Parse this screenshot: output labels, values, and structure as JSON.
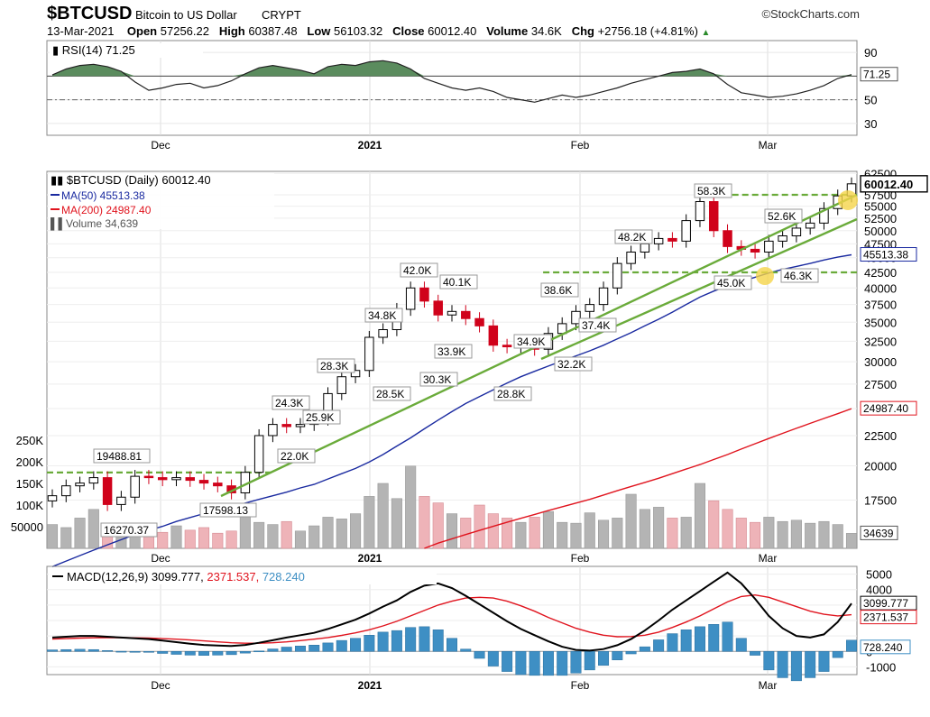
{
  "header": {
    "symbol": "$BTCUSD",
    "name": "Bitcoin to US Dollar",
    "class": "CRYPT",
    "logo": "©StockCharts.com",
    "date": "13-Mar-2021",
    "open_label": "Open",
    "open": "57256.22",
    "high_label": "High",
    "high": "60387.48",
    "low_label": "Low",
    "low": "56103.32",
    "close_label": "Close",
    "close": "60012.40",
    "volume_label": "Volume",
    "volume": "34.6K",
    "chg_label": "Chg",
    "chg": "+2756.18 (+4.81%)"
  },
  "colors": {
    "up_candle": "#000000",
    "down_candle": "#d0021b",
    "ma50": "#1a2aa0",
    "ma200": "#e0141e",
    "trend": "#6aab3a",
    "rsi_fill": "#5b8c5e",
    "volume_up": "#b4b4b4",
    "volume_down": "#eeb3b8",
    "macd_line": "#000000",
    "signal_line": "#e0141e",
    "histogram": "#3e8fc4"
  },
  "chart_data": [
    {
      "type": "line",
      "panel": "rsi",
      "legend": "RSI(14) 71.25",
      "current_label": "71.25",
      "y_ticks": [
        "90",
        "70",
        "50",
        "30"
      ],
      "ylim": [
        20,
        100
      ],
      "overbought": 70,
      "midline": 50,
      "x": [
        "Nov 18",
        "Nov 20",
        "Nov 22",
        "Nov 24",
        "Nov 26",
        "Nov 28",
        "Nov 30",
        "Dec 2",
        "Dec 4",
        "Dec 6",
        "Dec 8",
        "Dec 10",
        "Dec 12",
        "Dec 14",
        "Dec 16",
        "Dec 18",
        "Dec 20",
        "Dec 22",
        "Dec 24",
        "Dec 26",
        "Dec 28",
        "Dec 30",
        "Jan 1",
        "Jan 3",
        "Jan 5",
        "Jan 7",
        "Jan 9",
        "Jan 11",
        "Jan 13",
        "Jan 15",
        "Jan 17",
        "Jan 19",
        "Jan 21",
        "Jan 23",
        "Jan 25",
        "Jan 27",
        "Jan 29",
        "Jan 31",
        "Feb 2",
        "Feb 4",
        "Feb 6",
        "Feb 8",
        "Feb 10",
        "Feb 12",
        "Feb 14",
        "Feb 16",
        "Feb 18",
        "Feb 20",
        "Feb 22",
        "Feb 24",
        "Feb 26",
        "Feb 28",
        "Mar 2",
        "Mar 4",
        "Mar 6",
        "Mar 8",
        "Mar 10",
        "Mar 12",
        "Mar 13"
      ],
      "values": [
        71,
        76,
        79,
        80,
        78,
        74,
        65,
        58,
        60,
        63,
        64,
        60,
        62,
        66,
        72,
        77,
        79,
        77,
        75,
        72,
        78,
        80,
        79,
        82,
        83,
        81,
        76,
        68,
        64,
        60,
        58,
        60,
        57,
        52,
        50,
        48,
        51,
        54,
        52,
        54,
        57,
        60,
        64,
        67,
        70,
        73,
        74,
        76,
        72,
        63,
        56,
        54,
        52,
        53,
        55,
        58,
        62,
        68,
        71.25
      ]
    },
    {
      "type": "candlestick",
      "panel": "price",
      "legend": "$BTCUSD (Daily) 60012.40",
      "close_label": "60012.40",
      "y_ticks": [
        "62500",
        "57500",
        "55000",
        "52500",
        "50000",
        "47500",
        "45000",
        "42500",
        "40000",
        "37500",
        "35000",
        "32500",
        "30000",
        "27500",
        "25000",
        "22500",
        "20000",
        "17500"
      ],
      "scale": "log",
      "ylim": [
        14500,
        63000
      ],
      "x_ticks": [
        "Dec",
        "2021",
        "Feb",
        "Mar"
      ],
      "x": [
        "Nov 18",
        "Nov 20",
        "Nov 22",
        "Nov 24",
        "Nov 26",
        "Nov 28",
        "Nov 30",
        "Dec 2",
        "Dec 4",
        "Dec 6",
        "Dec 8",
        "Dec 10",
        "Dec 12",
        "Dec 14",
        "Dec 16",
        "Dec 18",
        "Dec 20",
        "Dec 22",
        "Dec 24",
        "Dec 26",
        "Dec 28",
        "Dec 30",
        "Jan 1",
        "Jan 3",
        "Jan 5",
        "Jan 7",
        "Jan 9",
        "Jan 11",
        "Jan 13",
        "Jan 15",
        "Jan 17",
        "Jan 19",
        "Jan 21",
        "Jan 23",
        "Jan 25",
        "Jan 27",
        "Jan 29",
        "Jan 31",
        "Feb 2",
        "Feb 4",
        "Feb 6",
        "Feb 8",
        "Feb 10",
        "Feb 12",
        "Feb 14",
        "Feb 16",
        "Feb 18",
        "Feb 20",
        "Feb 22",
        "Feb 24",
        "Feb 26",
        "Feb 28",
        "Mar 2",
        "Mar 4",
        "Mar 6",
        "Mar 8",
        "Mar 10",
        "Mar 12",
        "Mar 13"
      ],
      "close": [
        17800,
        18500,
        18700,
        19100,
        17200,
        17700,
        19200,
        19100,
        18950,
        19100,
        18900,
        18700,
        18500,
        18000,
        19500,
        22500,
        23500,
        23300,
        23500,
        24000,
        26500,
        28300,
        29000,
        33000,
        34000,
        36800,
        40000,
        38000,
        36000,
        36500,
        35500,
        34500,
        32000,
        31800,
        32000,
        31500,
        33500,
        34800,
        36500,
        37500,
        40000,
        44000,
        46000,
        47500,
        48500,
        48000,
        52000,
        56000,
        50000,
        47000,
        46500,
        46000,
        48000,
        49000,
        50500,
        51500,
        54500,
        57256,
        60012
      ],
      "series": [
        {
          "name": "MA(50) 45513.38",
          "label": "45513.38",
          "values": [
            13500,
            13800,
            14100,
            14400,
            14700,
            15000,
            15300,
            15550,
            15800,
            16100,
            16350,
            16600,
            16850,
            17050,
            17300,
            17550,
            17800,
            18050,
            18350,
            18600,
            19000,
            19400,
            19800,
            20300,
            20900,
            21600,
            22300,
            23100,
            23900,
            24700,
            25500,
            26200,
            26900,
            27600,
            28300,
            28900,
            29500,
            30100,
            30700,
            31300,
            32000,
            32800,
            33600,
            34500,
            35400,
            36400,
            37500,
            38600,
            39500,
            40300,
            41000,
            41700,
            42400,
            43000,
            43500,
            44000,
            44600,
            45100,
            45513
          ]
        },
        {
          "name": "MA(200) 24987.40",
          "label": "24987.40",
          "values": [
            null,
            null,
            null,
            null,
            null,
            null,
            null,
            null,
            null,
            null,
            null,
            null,
            null,
            null,
            null,
            null,
            null,
            null,
            null,
            null,
            null,
            null,
            null,
            null,
            null,
            null,
            null,
            14500,
            14800,
            15050,
            15300,
            15550,
            15800,
            16050,
            16300,
            16550,
            16800,
            17050,
            17300,
            17550,
            17850,
            18150,
            18450,
            18750,
            19050,
            19400,
            19750,
            20100,
            20500,
            20900,
            21350,
            21800,
            22250,
            22700,
            23150,
            23600,
            24050,
            24500,
            24987
          ]
        }
      ],
      "annotations": [
        "19488.81",
        "16270.37",
        "17598.13",
        "22.0K",
        "24.3K",
        "25.9K",
        "28.3K",
        "28.5K",
        "34.8K",
        "42.0K",
        "30.3K",
        "40.1K",
        "33.9K",
        "34.9K",
        "28.8K",
        "38.6K",
        "32.2K",
        "37.4K",
        "48.2K",
        "58.3K",
        "45.0K",
        "52.6K",
        "46.3K"
      ]
    },
    {
      "type": "bar",
      "panel": "volume",
      "legend": "Volume 34,639",
      "current_label": "34639",
      "y_ticks": [
        "250K",
        "200K",
        "150K",
        "100K",
        "50000"
      ],
      "ylim": [
        0,
        250000
      ],
      "x": [
        "Nov 18",
        "Nov 20",
        "Nov 22",
        "Nov 24",
        "Nov 26",
        "Nov 28",
        "Nov 30",
        "Dec 2",
        "Dec 4",
        "Dec 6",
        "Dec 8",
        "Dec 10",
        "Dec 12",
        "Dec 14",
        "Dec 16",
        "Dec 18",
        "Dec 20",
        "Dec 22",
        "Dec 24",
        "Dec 26",
        "Dec 28",
        "Dec 30",
        "Jan 1",
        "Jan 3",
        "Jan 5",
        "Jan 7",
        "Jan 9",
        "Jan 11",
        "Jan 13",
        "Jan 15",
        "Jan 17",
        "Jan 19",
        "Jan 21",
        "Jan 23",
        "Jan 25",
        "Jan 27",
        "Jan 29",
        "Jan 31",
        "Feb 2",
        "Feb 4",
        "Feb 6",
        "Feb 8",
        "Feb 10",
        "Feb 12",
        "Feb 14",
        "Feb 16",
        "Feb 18",
        "Feb 20",
        "Feb 22",
        "Feb 24",
        "Feb 26",
        "Feb 28",
        "Mar 2",
        "Mar 4",
        "Mar 6",
        "Mar 8",
        "Mar 10",
        "Mar 12",
        "Mar 13"
      ],
      "values": [
        55000,
        48000,
        70000,
        90000,
        58000,
        45000,
        40000,
        38000,
        37000,
        52000,
        42000,
        48000,
        35000,
        40000,
        95000,
        60000,
        55000,
        62000,
        40000,
        52000,
        72000,
        68000,
        80000,
        120000,
        150000,
        115000,
        190000,
        120000,
        105000,
        80000,
        70000,
        100000,
        80000,
        70000,
        60000,
        72000,
        85000,
        60000,
        58000,
        82000,
        65000,
        70000,
        125000,
        90000,
        95000,
        70000,
        72000,
        150000,
        110000,
        90000,
        70000,
        60000,
        72000,
        62000,
        65000,
        58000,
        62000,
        55000,
        34639
      ]
    },
    {
      "type": "line",
      "panel": "macd",
      "legend_name": "MACD(12,26,9)",
      "legend_macd": "3099.777",
      "legend_signal": "2371.537",
      "legend_hist": "728.240",
      "y_ticks": [
        "5000",
        "4000",
        "3000",
        "2000",
        "1000",
        "0",
        "-1000"
      ],
      "ylim": [
        -1500,
        5500
      ],
      "x": [
        "Nov 18",
        "Nov 20",
        "Nov 22",
        "Nov 24",
        "Nov 26",
        "Nov 28",
        "Nov 30",
        "Dec 2",
        "Dec 4",
        "Dec 6",
        "Dec 8",
        "Dec 10",
        "Dec 12",
        "Dec 14",
        "Dec 16",
        "Dec 18",
        "Dec 20",
        "Dec 22",
        "Dec 24",
        "Dec 26",
        "Dec 28",
        "Dec 30",
        "Jan 1",
        "Jan 3",
        "Jan 5",
        "Jan 7",
        "Jan 9",
        "Jan 11",
        "Jan 13",
        "Jan 15",
        "Jan 17",
        "Jan 19",
        "Jan 21",
        "Jan 23",
        "Jan 25",
        "Jan 27",
        "Jan 29",
        "Jan 31",
        "Feb 2",
        "Feb 4",
        "Feb 6",
        "Feb 8",
        "Feb 10",
        "Feb 12",
        "Feb 14",
        "Feb 16",
        "Feb 18",
        "Feb 20",
        "Feb 22",
        "Feb 24",
        "Feb 26",
        "Feb 28",
        "Mar 2",
        "Mar 4",
        "Mar 6",
        "Mar 8",
        "Mar 10",
        "Mar 12",
        "Mar 13"
      ],
      "series": [
        {
          "name": "MACD",
          "values": [
            900,
            950,
            1000,
            1000,
            950,
            900,
            850,
            800,
            700,
            600,
            500,
            420,
            380,
            350,
            420,
            560,
            720,
            900,
            1050,
            1200,
            1450,
            1750,
            2050,
            2450,
            2900,
            3300,
            3850,
            4250,
            4400,
            4100,
            3600,
            3050,
            2500,
            1950,
            1450,
            1050,
            650,
            300,
            100,
            50,
            150,
            400,
            800,
            1350,
            2000,
            2700,
            3300,
            3900,
            4500,
            5100,
            4400,
            3400,
            2300,
            1500,
            1000,
            900,
            1100,
            1900,
            3100
          ]
        },
        {
          "name": "Signal",
          "values": [
            800,
            830,
            860,
            880,
            890,
            890,
            880,
            860,
            830,
            790,
            740,
            680,
            620,
            560,
            530,
            530,
            560,
            620,
            700,
            790,
            900,
            1040,
            1200,
            1400,
            1650,
            1950,
            2300,
            2650,
            3000,
            3250,
            3450,
            3500,
            3450,
            3250,
            2950,
            2600,
            2200,
            1850,
            1500,
            1250,
            1050,
            950,
            960,
            1050,
            1250,
            1550,
            1900,
            2300,
            2750,
            3200,
            3550,
            3650,
            3500,
            3200,
            2900,
            2600,
            2400,
            2300,
            2371
          ]
        },
        {
          "name": "Histogram",
          "values": [
            100,
            120,
            140,
            120,
            60,
            10,
            -30,
            -60,
            -130,
            -190,
            -240,
            -260,
            -240,
            -210,
            -110,
            30,
            160,
            280,
            350,
            410,
            550,
            710,
            850,
            1050,
            1250,
            1350,
            1550,
            1600,
            1400,
            850,
            150,
            -450,
            -950,
            -1300,
            -1500,
            -1550,
            -1550,
            -1550,
            -1400,
            -1200,
            -900,
            -550,
            -160,
            300,
            750,
            1150,
            1400,
            1600,
            1750,
            1900,
            850,
            -250,
            -1200,
            -1700,
            -1900,
            -1700,
            -1300,
            -400,
            728
          ]
        }
      ]
    }
  ]
}
